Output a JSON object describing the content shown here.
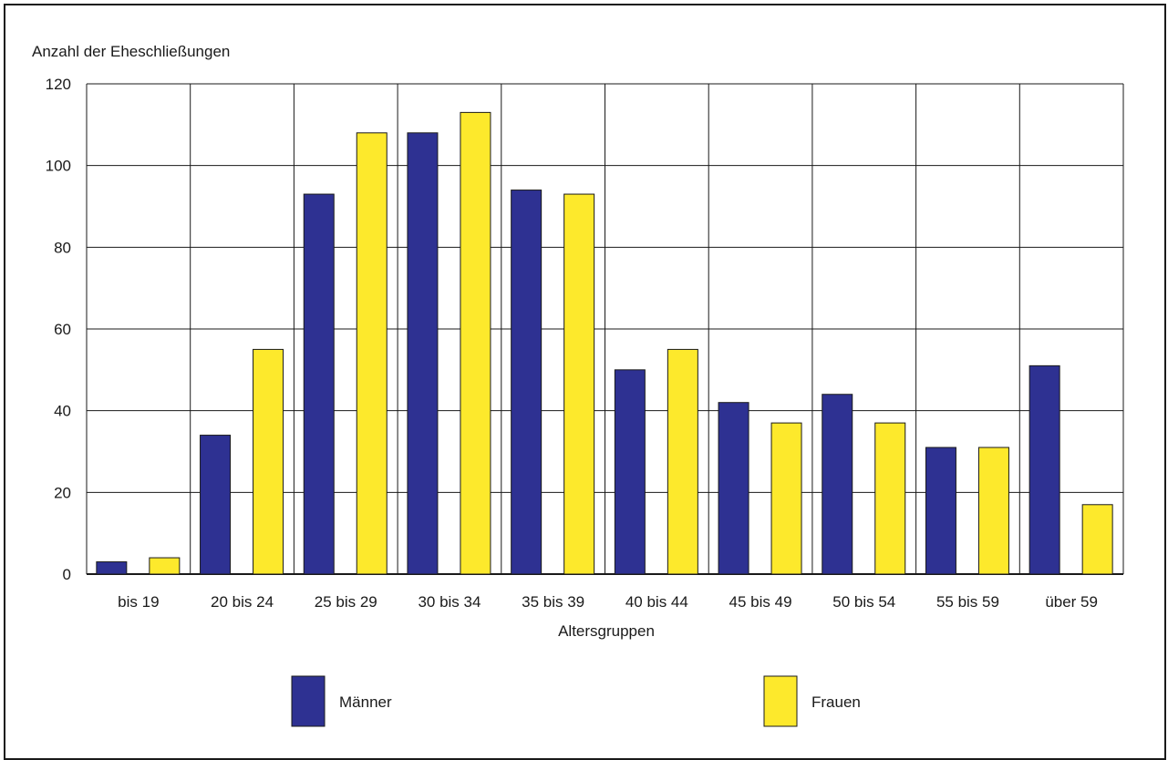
{
  "chart_data": {
    "type": "bar",
    "ylabel": "Anzahl der Eheschließungen",
    "xlabel": "Altersgruppen",
    "categories": [
      "bis 19",
      "20 bis 24",
      "25 bis 29",
      "30 bis 34",
      "35 bis 39",
      "40 bis 44",
      "45 bis 49",
      "50 bis 54",
      "55 bis 59",
      "über 59"
    ],
    "series": [
      {
        "name": "Männer",
        "color": "#2e3192",
        "values": [
          3,
          34,
          93,
          108,
          94,
          50,
          42,
          44,
          31,
          51
        ]
      },
      {
        "name": "Frauen",
        "color": "#fde92c",
        "values": [
          4,
          55,
          108,
          113,
          93,
          55,
          37,
          37,
          31,
          17
        ]
      }
    ],
    "ylim": [
      0,
      120
    ],
    "yticks": [
      "0",
      "20",
      "40",
      "60",
      "80",
      "100",
      "120"
    ],
    "grid": true,
    "legend": "bottom"
  }
}
